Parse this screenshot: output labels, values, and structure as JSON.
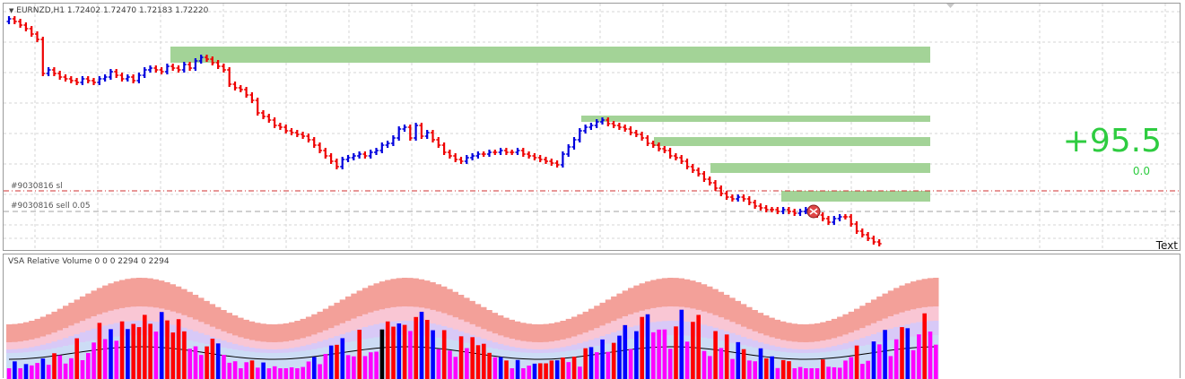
{
  "chart_header": {
    "symbol_timeframe": "EURNZD,H1",
    "ohlc": "1.72402 1.72470 1.72183 1.72220"
  },
  "order_labels": {
    "stop_loss": "#9030816 sl",
    "sell_order": "#9030816 sell 0.05"
  },
  "profit_display": {
    "points": "+95.5",
    "secondary": "0.0",
    "color": "#2ecc40"
  },
  "text_object": "Text",
  "indicator": {
    "header": "VSA Relative Volume 0 0 0 2294 0 2294"
  },
  "colors": {
    "bull_bar": "#0000dd",
    "bear_bar": "#ee0000",
    "zone": "#a3d397",
    "sl_line": "#d03030",
    "order_line": "#a0a0a0",
    "band_outer": "#f3a099",
    "band_2": "#f9c6d4",
    "band_3": "#d8c9f7",
    "band_4": "#ccdcf5",
    "vol_up": "#0000ff",
    "vol_down": "#ff0000",
    "vol_low": "#ff00ff",
    "vol_climax": "#000000"
  },
  "icons": {
    "chart_menu": "triangle-down-icon",
    "order_marker": "sell-marker-icon"
  }
}
